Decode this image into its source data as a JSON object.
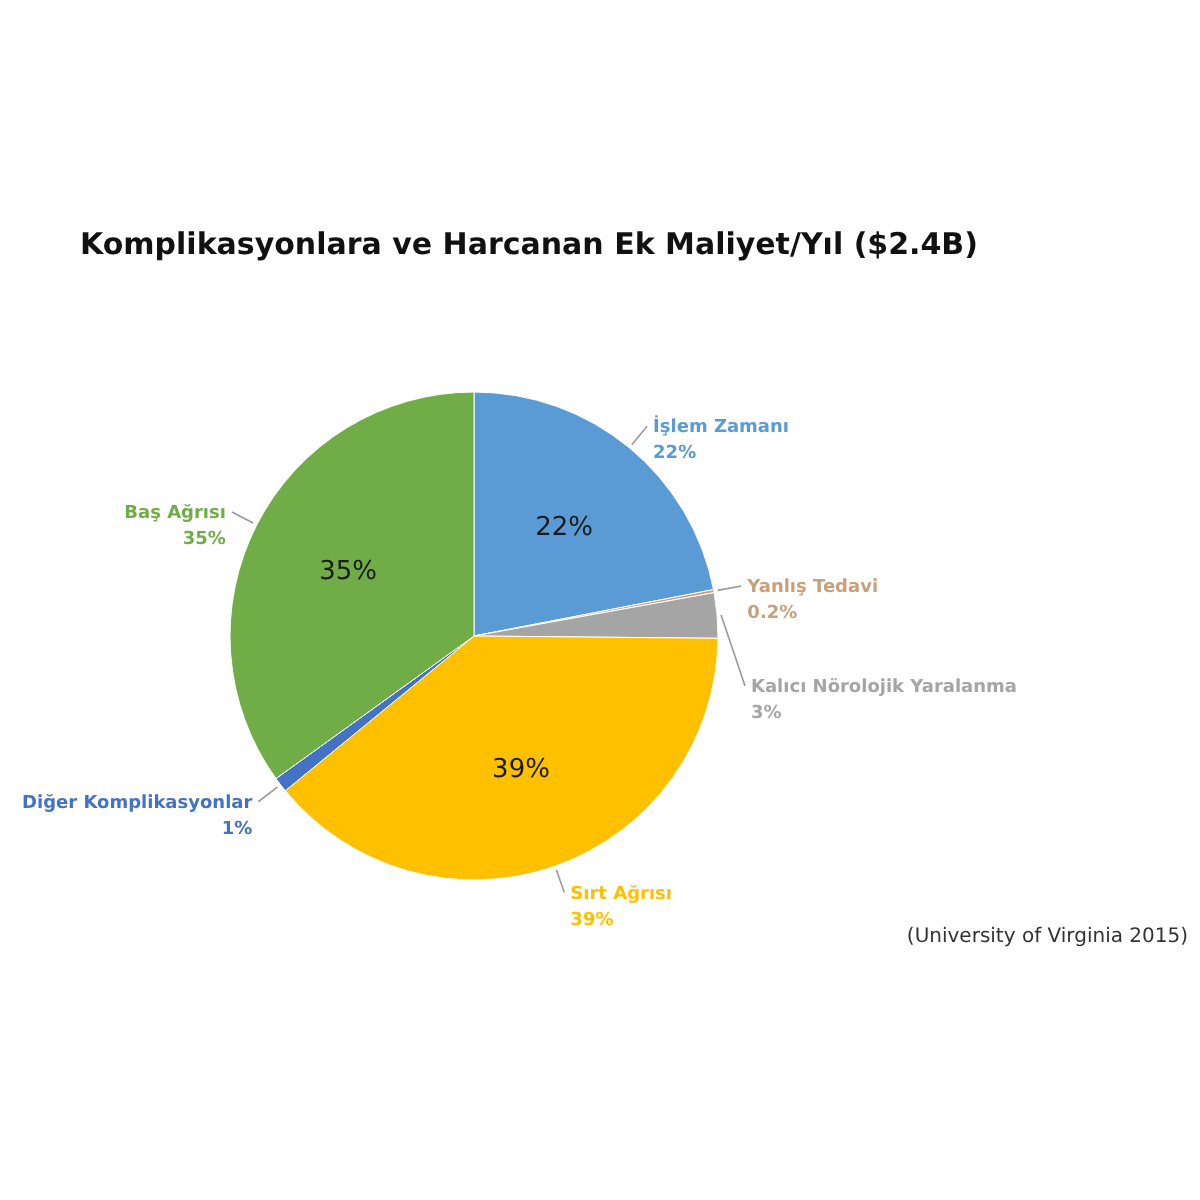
{
  "chart_data": {
    "type": "pie",
    "title": "Komplikasyonlara ve Harcanan Ek Maliyet/Yıl ($2.4B)",
    "categories": [
      "İşlem Zamanı",
      "Yanlış Tedavi",
      "Kalıcı Nörolojik Yaralanma",
      "Sırt Ağrısı",
      "Diğer Komplikasyonlar",
      "Baş Ağrısı"
    ],
    "values": [
      22,
      0.2,
      3,
      39,
      1,
      35
    ],
    "colors": [
      "#5b9bd5",
      "#c8a07a",
      "#a5a5a5",
      "#ffc000",
      "#4472c4",
      "#70ad47"
    ],
    "value_labels": [
      "22%",
      "0.2%",
      "3%",
      "39%",
      "1%",
      "35%"
    ],
    "legend": false,
    "annotations": [
      "(University of Virginia 2015)"
    ]
  }
}
